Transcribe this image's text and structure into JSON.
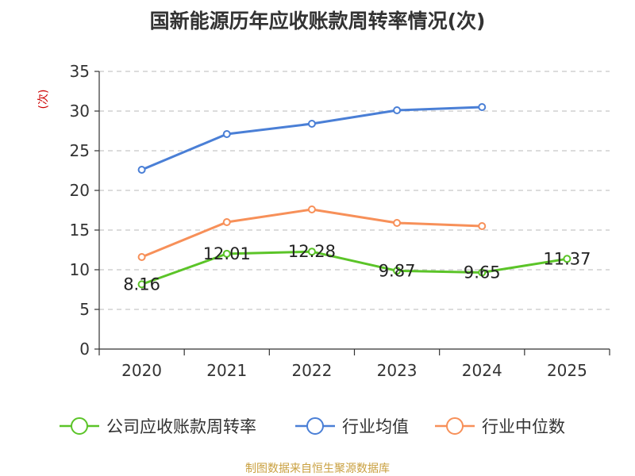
{
  "chart_data": {
    "type": "line",
    "title": "国新能源历年应收账款周转率情况(次)",
    "ylabel": "(次)",
    "xlabel": "",
    "categories": [
      "2020",
      "2021",
      "2022",
      "2023",
      "2024",
      "2025"
    ],
    "ylim": [
      0,
      35
    ],
    "yticks": [
      0,
      5,
      10,
      15,
      20,
      25,
      30,
      35
    ],
    "grid": true,
    "legend_position": "bottom",
    "series": [
      {
        "name": "公司应收账款周转率",
        "color": "#5bc428",
        "values": [
          8.16,
          12.01,
          12.28,
          9.87,
          9.65,
          11.37
        ],
        "labels": [
          "8.16",
          "12.01",
          "12.28",
          "9.87",
          "9.65",
          "11.37"
        ]
      },
      {
        "name": "行业均值",
        "color": "#4a7fd6",
        "values": [
          22.6,
          27.1,
          28.4,
          30.1,
          30.5,
          null
        ]
      },
      {
        "name": "行业中位数",
        "color": "#f79059",
        "values": [
          11.6,
          16.0,
          17.6,
          15.9,
          15.5,
          null
        ]
      }
    ],
    "source": "制图数据来自恒生聚源数据库"
  }
}
